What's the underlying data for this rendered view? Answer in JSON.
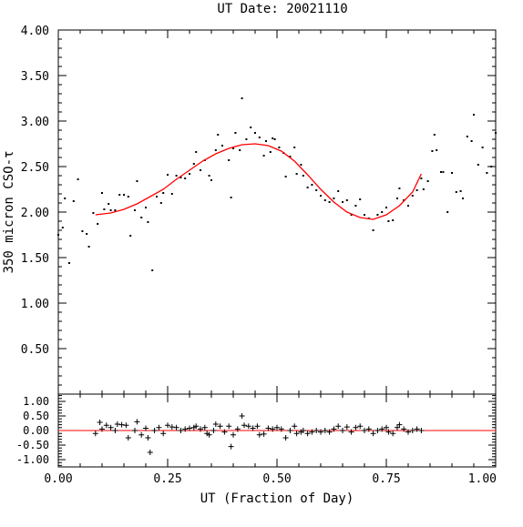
{
  "chart_data": [
    {
      "type": "scatter",
      "title": "UT Date: 20021110",
      "ylabel": "350 micron CSO-τ",
      "xlim": [
        0,
        1
      ],
      "ylim": [
        0,
        4
      ],
      "x_ticks": [
        "0.00",
        "0.25",
        "0.50",
        "0.75",
        "1.00"
      ],
      "y_ticks": [
        "0.50",
        "1.00",
        "1.50",
        "2.00",
        "2.50",
        "3.00",
        "3.50",
        "4.00"
      ],
      "grid": false,
      "colors": {
        "points": "#000000",
        "fit": "#ff0000"
      },
      "series": [
        {
          "marker": "dot",
          "points": [
            [
              0.0,
              1.75
            ],
            [
              0.01,
              1.83
            ],
            [
              0.015,
              2.15
            ],
            [
              0.025,
              1.44
            ],
            [
              0.035,
              2.12
            ],
            [
              0.045,
              2.36
            ],
            [
              0.055,
              1.79
            ],
            [
              0.065,
              1.76
            ],
            [
              0.07,
              1.62
            ],
            [
              0.08,
              1.99
            ],
            [
              0.09,
              1.87
            ],
            [
              0.1,
              2.21
            ],
            [
              0.105,
              2.03
            ],
            [
              0.115,
              2.09
            ],
            [
              0.12,
              2.02
            ],
            [
              0.13,
              2.02
            ],
            [
              0.14,
              2.19
            ],
            [
              0.15,
              2.19
            ],
            [
              0.16,
              2.17
            ],
            [
              0.165,
              1.74
            ],
            [
              0.175,
              2.02
            ],
            [
              0.18,
              2.34
            ],
            [
              0.19,
              1.94
            ],
            [
              0.2,
              2.05
            ],
            [
              0.205,
              1.89
            ],
            [
              0.215,
              1.36
            ],
            [
              0.225,
              2.17
            ],
            [
              0.235,
              2.1
            ],
            [
              0.24,
              2.21
            ],
            [
              0.25,
              2.41
            ],
            [
              0.26,
              2.2
            ],
            [
              0.27,
              2.4
            ],
            [
              0.28,
              2.38
            ],
            [
              0.29,
              2.37
            ],
            [
              0.3,
              2.42
            ],
            [
              0.31,
              2.53
            ],
            [
              0.315,
              2.66
            ],
            [
              0.325,
              2.46
            ],
            [
              0.335,
              2.57
            ],
            [
              0.345,
              2.4
            ],
            [
              0.35,
              2.35
            ],
            [
              0.36,
              2.68
            ],
            [
              0.365,
              2.85
            ],
            [
              0.375,
              2.73
            ],
            [
              0.39,
              2.57
            ],
            [
              0.395,
              2.16
            ],
            [
              0.4,
              2.7
            ],
            [
              0.405,
              2.87
            ],
            [
              0.415,
              2.68
            ],
            [
              0.42,
              3.25
            ],
            [
              0.43,
              2.8
            ],
            [
              0.44,
              2.93
            ],
            [
              0.45,
              2.87
            ],
            [
              0.46,
              2.82
            ],
            [
              0.47,
              2.62
            ],
            [
              0.475,
              2.78
            ],
            [
              0.485,
              2.66
            ],
            [
              0.49,
              2.81
            ],
            [
              0.495,
              2.8
            ],
            [
              0.505,
              2.71
            ],
            [
              0.515,
              2.65
            ],
            [
              0.52,
              2.39
            ],
            [
              0.53,
              2.61
            ],
            [
              0.54,
              2.71
            ],
            [
              0.545,
              2.42
            ],
            [
              0.555,
              2.52
            ],
            [
              0.56,
              2.4
            ],
            [
              0.57,
              2.27
            ],
            [
              0.58,
              2.3
            ],
            [
              0.59,
              2.24
            ],
            [
              0.6,
              2.18
            ],
            [
              0.61,
              2.13
            ],
            [
              0.62,
              2.11
            ],
            [
              0.63,
              2.15
            ],
            [
              0.64,
              2.23
            ],
            [
              0.65,
              2.11
            ],
            [
              0.66,
              2.13
            ],
            [
              0.67,
              1.97
            ],
            [
              0.68,
              2.07
            ],
            [
              0.69,
              2.14
            ],
            [
              0.7,
              1.97
            ],
            [
              0.71,
              1.93
            ],
            [
              0.72,
              1.8
            ],
            [
              0.73,
              1.97
            ],
            [
              0.74,
              2.0
            ],
            [
              0.75,
              2.05
            ],
            [
              0.755,
              1.9
            ],
            [
              0.765,
              1.91
            ],
            [
              0.775,
              2.15
            ],
            [
              0.78,
              2.26
            ],
            [
              0.79,
              2.13
            ],
            [
              0.8,
              2.07
            ],
            [
              0.81,
              2.18
            ],
            [
              0.82,
              2.24
            ],
            [
              0.83,
              2.37
            ],
            [
              0.835,
              2.25
            ],
            [
              0.845,
              2.34
            ],
            [
              0.855,
              2.67
            ],
            [
              0.86,
              2.85
            ],
            [
              0.865,
              2.68
            ],
            [
              0.875,
              2.44
            ],
            [
              0.88,
              2.44
            ],
            [
              0.89,
              2.0
            ],
            [
              0.9,
              2.43
            ],
            [
              0.91,
              2.22
            ],
            [
              0.92,
              2.23
            ],
            [
              0.925,
              2.15
            ],
            [
              0.935,
              2.83
            ],
            [
              0.945,
              2.78
            ],
            [
              0.95,
              3.07
            ],
            [
              0.96,
              2.52
            ],
            [
              0.97,
              2.71
            ],
            [
              0.98,
              2.43
            ],
            [
              0.99,
              2.5
            ],
            [
              1.0,
              2.87
            ]
          ]
        },
        {
          "marker": "line",
          "color": "#ff0000",
          "points": [
            [
              0.085,
              1.97
            ],
            [
              0.12,
              1.99
            ],
            [
              0.15,
              2.03
            ],
            [
              0.18,
              2.09
            ],
            [
              0.21,
              2.17
            ],
            [
              0.24,
              2.25
            ],
            [
              0.27,
              2.36
            ],
            [
              0.3,
              2.46
            ],
            [
              0.33,
              2.56
            ],
            [
              0.36,
              2.64
            ],
            [
              0.39,
              2.7
            ],
            [
              0.42,
              2.74
            ],
            [
              0.45,
              2.75
            ],
            [
              0.48,
              2.73
            ],
            [
              0.51,
              2.67
            ],
            [
              0.54,
              2.56
            ],
            [
              0.57,
              2.41
            ],
            [
              0.6,
              2.25
            ],
            [
              0.63,
              2.11
            ],
            [
              0.66,
              2.0
            ],
            [
              0.69,
              1.94
            ],
            [
              0.72,
              1.92
            ],
            [
              0.75,
              1.97
            ],
            [
              0.78,
              2.07
            ],
            [
              0.81,
              2.22
            ],
            [
              0.83,
              2.42
            ]
          ]
        }
      ]
    },
    {
      "type": "scatter",
      "xlabel": "UT (Fraction of Day)",
      "xlim": [
        0,
        1
      ],
      "ylim": [
        -1.25,
        1.25
      ],
      "x_ticks": [
        "0.00",
        "0.25",
        "0.50",
        "0.75",
        "1.00"
      ],
      "y_ticks": [
        "1.00",
        "0.50",
        "0.00",
        "-0.50",
        "-1.00"
      ],
      "grid": false,
      "colors": {
        "points": "#000000",
        "zero_line": "#ff0000"
      },
      "series": [
        {
          "marker": "plus",
          "points": [
            [
              0.085,
              -0.1
            ],
            [
              0.095,
              0.28
            ],
            [
              0.1,
              0.05
            ],
            [
              0.11,
              0.18
            ],
            [
              0.12,
              0.1
            ],
            [
              0.13,
              0.0
            ],
            [
              0.135,
              0.22
            ],
            [
              0.145,
              0.2
            ],
            [
              0.155,
              0.18
            ],
            [
              0.16,
              -0.25
            ],
            [
              0.175,
              0.0
            ],
            [
              0.18,
              0.3
            ],
            [
              0.19,
              -0.15
            ],
            [
              0.2,
              0.08
            ],
            [
              0.205,
              -0.25
            ],
            [
              0.21,
              -0.75
            ],
            [
              0.22,
              0.0
            ],
            [
              0.23,
              0.1
            ],
            [
              0.24,
              -0.1
            ],
            [
              0.25,
              0.18
            ],
            [
              0.26,
              0.12
            ],
            [
              0.27,
              0.1
            ],
            [
              0.28,
              0.0
            ],
            [
              0.29,
              0.05
            ],
            [
              0.3,
              0.08
            ],
            [
              0.31,
              0.1
            ],
            [
              0.315,
              0.15
            ],
            [
              0.325,
              0.05
            ],
            [
              0.335,
              0.1
            ],
            [
              0.34,
              -0.1
            ],
            [
              0.345,
              -0.15
            ],
            [
              0.355,
              0.0
            ],
            [
              0.36,
              0.22
            ],
            [
              0.37,
              0.15
            ],
            [
              0.38,
              -0.05
            ],
            [
              0.39,
              0.15
            ],
            [
              0.395,
              -0.55
            ],
            [
              0.4,
              -0.15
            ],
            [
              0.41,
              0.05
            ],
            [
              0.42,
              0.5
            ],
            [
              0.425,
              0.18
            ],
            [
              0.435,
              0.15
            ],
            [
              0.445,
              0.08
            ],
            [
              0.455,
              0.15
            ],
            [
              0.46,
              -0.15
            ],
            [
              0.47,
              -0.12
            ],
            [
              0.48,
              0.08
            ],
            [
              0.49,
              0.05
            ],
            [
              0.5,
              0.1
            ],
            [
              0.51,
              0.05
            ],
            [
              0.52,
              -0.25
            ],
            [
              0.53,
              0.0
            ],
            [
              0.54,
              0.15
            ],
            [
              0.545,
              -0.1
            ],
            [
              0.555,
              -0.05
            ],
            [
              0.56,
              0.0
            ],
            [
              0.57,
              -0.1
            ],
            [
              0.58,
              -0.05
            ],
            [
              0.59,
              0.0
            ],
            [
              0.6,
              -0.05
            ],
            [
              0.61,
              0.0
            ],
            [
              0.62,
              -0.05
            ],
            [
              0.63,
              0.05
            ],
            [
              0.64,
              0.15
            ],
            [
              0.65,
              0.0
            ],
            [
              0.66,
              0.12
            ],
            [
              0.67,
              -0.05
            ],
            [
              0.68,
              0.1
            ],
            [
              0.69,
              0.15
            ],
            [
              0.7,
              0.0
            ],
            [
              0.71,
              0.05
            ],
            [
              0.72,
              -0.1
            ],
            [
              0.73,
              0.0
            ],
            [
              0.74,
              0.05
            ],
            [
              0.75,
              0.1
            ],
            [
              0.755,
              -0.05
            ],
            [
              0.765,
              -0.1
            ],
            [
              0.775,
              0.1
            ],
            [
              0.78,
              0.2
            ],
            [
              0.79,
              0.05
            ],
            [
              0.8,
              -0.05
            ],
            [
              0.81,
              0.0
            ],
            [
              0.82,
              0.05
            ],
            [
              0.83,
              0.0
            ]
          ]
        }
      ]
    }
  ]
}
